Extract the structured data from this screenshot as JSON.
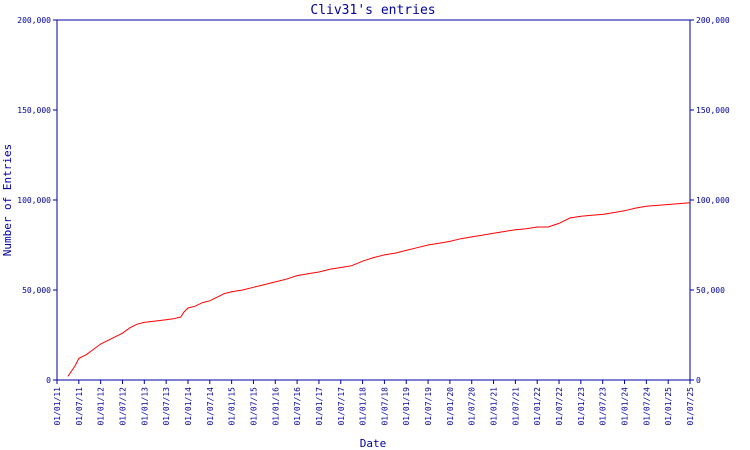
{
  "chart_data": {
    "type": "line",
    "title": "Cliv31's entries",
    "xlabel": "Date",
    "ylabel": "Number of Entries",
    "ylim": [
      0,
      200000
    ],
    "y_ticks": [
      {
        "value": 0,
        "label": "0"
      },
      {
        "value": 50000,
        "label": "50,000"
      },
      {
        "value": 100000,
        "label": "100,000"
      },
      {
        "value": 150000,
        "label": "150,000"
      },
      {
        "value": 200000,
        "label": "200,000"
      }
    ],
    "x_ticks": [
      "01/01/11",
      "01/07/11",
      "01/01/12",
      "01/07/12",
      "01/01/13",
      "01/07/13",
      "01/01/14",
      "01/07/14",
      "01/01/15",
      "01/07/15",
      "01/01/16",
      "01/07/16",
      "01/01/17",
      "01/07/17",
      "01/01/18",
      "01/07/18",
      "01/01/19",
      "01/07/19",
      "01/01/20",
      "01/07/20",
      "01/01/21",
      "01/07/21",
      "01/01/22",
      "01/07/22",
      "01/01/23",
      "01/07/23",
      "01/01/24",
      "01/07/24",
      "01/01/25",
      "01/07/25"
    ],
    "grid": false,
    "colors": {
      "axis": "#0000a0",
      "series": "#ff0000",
      "background": "#ffffff"
    },
    "series": [
      {
        "x": [
          "01/04/11",
          "01/06/11",
          "01/07/11",
          "01/09/11",
          "01/11/11",
          "01/01/12",
          "01/03/12",
          "01/05/12",
          "01/07/12",
          "01/09/12",
          "01/11/12",
          "01/01/13",
          "01/03/13",
          "01/05/13",
          "01/07/13",
          "01/09/13",
          "01/11/13",
          "01/12/13",
          "01/01/14",
          "01/03/14",
          "01/05/14",
          "01/07/14",
          "01/09/14",
          "01/11/14",
          "01/01/15",
          "01/04/15",
          "01/07/15",
          "01/10/15",
          "01/01/16",
          "01/04/16",
          "01/07/16",
          "01/10/16",
          "01/01/17",
          "01/04/17",
          "01/07/17",
          "01/10/17",
          "01/01/18",
          "01/04/18",
          "01/07/18",
          "01/10/18",
          "01/01/19",
          "01/04/19",
          "01/07/19",
          "01/10/19",
          "01/01/20",
          "01/04/20",
          "01/07/20",
          "01/10/20",
          "01/01/21",
          "01/04/21",
          "01/07/21",
          "01/10/21",
          "01/01/22",
          "01/04/22",
          "01/07/22",
          "01/10/22",
          "01/01/23",
          "01/04/23",
          "01/07/23",
          "01/10/23",
          "01/01/24",
          "01/04/24",
          "01/07/24",
          "01/10/24",
          "01/01/25",
          "01/04/25",
          "01/07/25"
        ],
        "values": [
          2000,
          8000,
          12000,
          14000,
          17000,
          20000,
          22000,
          24000,
          26000,
          29000,
          31000,
          32000,
          32500,
          33000,
          33500,
          34000,
          35000,
          38000,
          40000,
          41000,
          43000,
          44000,
          46000,
          48000,
          49000,
          50000,
          51500,
          53000,
          54500,
          56000,
          58000,
          59000,
          60000,
          61500,
          62500,
          63500,
          66000,
          68000,
          69500,
          70500,
          72000,
          73500,
          75000,
          76000,
          77000,
          78500,
          79500,
          80500,
          81500,
          82500,
          83500,
          84000,
          85000,
          85000,
          87000,
          90000,
          91000,
          91500,
          92000,
          93000,
          94000,
          95500,
          96500,
          97000,
          97500,
          98000,
          98500
        ]
      }
    ]
  }
}
